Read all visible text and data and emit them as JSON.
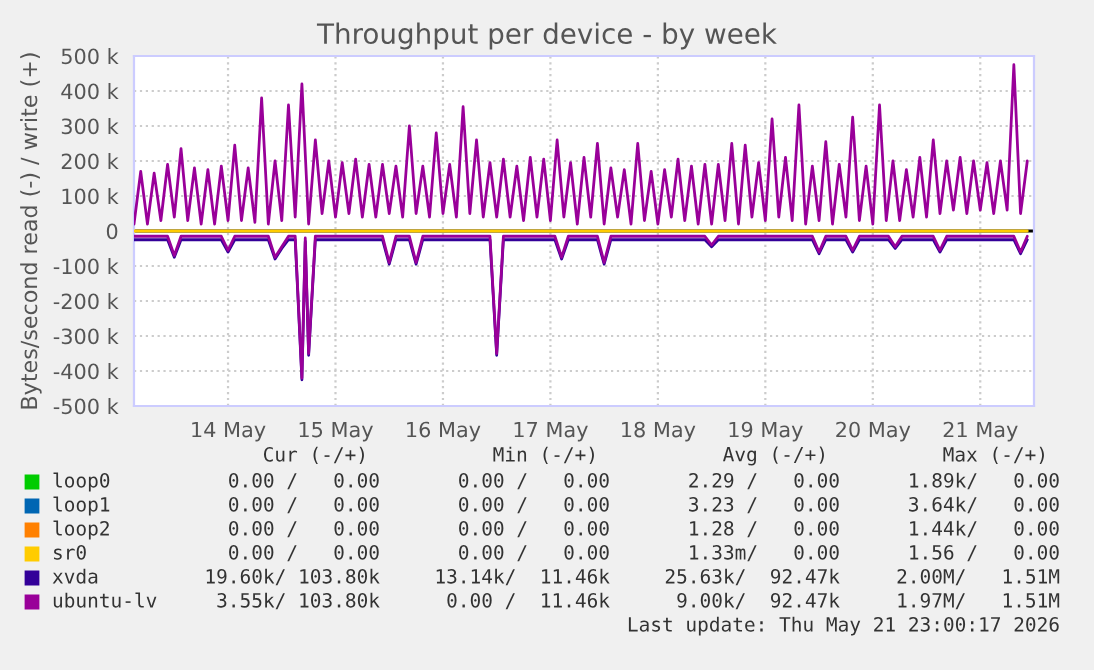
{
  "chart_data": {
    "type": "line",
    "title": "Throughput per device - by week",
    "ylabel": "Bytes/second read (-) / write (+)",
    "xlim": [
      "2026-05-13T15:00",
      "2026-05-22T00:00"
    ],
    "xticks": [
      {
        "value": "2026-05-14T12:00",
        "label": "14 May"
      },
      {
        "value": "2026-05-15T12:00",
        "label": "15 May"
      },
      {
        "value": "2026-05-16T12:00",
        "label": "16 May"
      },
      {
        "value": "2026-05-17T12:00",
        "label": "17 May"
      },
      {
        "value": "2026-05-18T12:00",
        "label": "18 May"
      },
      {
        "value": "2026-05-19T12:00",
        "label": "19 May"
      },
      {
        "value": "2026-05-20T12:00",
        "label": "20 May"
      },
      {
        "value": "2026-05-21T12:00",
        "label": "21 May"
      }
    ],
    "ylim": [
      -500000,
      500000
    ],
    "yticks": [
      {
        "value": -500000,
        "label": "-500 k"
      },
      {
        "value": -400000,
        "label": "-400 k"
      },
      {
        "value": -300000,
        "label": "-300 k"
      },
      {
        "value": -200000,
        "label": "-200 k"
      },
      {
        "value": -100000,
        "label": "-100 k"
      },
      0,
      {
        "value": 100000,
        "label": "100 k"
      },
      {
        "value": 200000,
        "label": "200 k"
      },
      {
        "value": 300000,
        "label": "300 k"
      },
      {
        "value": 400000,
        "label": "400 k"
      },
      {
        "value": 500000,
        "label": "500 k"
      }
    ],
    "grid": true,
    "legend": "bottom",
    "ref_lines": [
      {
        "axis": "y",
        "value": 0,
        "color": "#000000"
      }
    ],
    "series": [
      {
        "name": "loop0",
        "color": "#00cc00"
      },
      {
        "name": "loop1",
        "color": "#0066b3"
      },
      {
        "name": "loop2",
        "color": "#ff8000"
      },
      {
        "name": "sr0",
        "color": "#ffcc00",
        "x": [
          "2026-05-13T15:00",
          "2026-05-21T22:30"
        ],
        "values": [
          0,
          0
        ]
      },
      {
        "name": "xvda",
        "color": "#330099",
        "x": [
          "2026-05-13T15:00",
          "2026-05-13T22:30",
          "2026-05-14T00:00",
          "2026-05-14T01:30",
          "2026-05-14T10:30",
          "2026-05-14T12:00",
          "2026-05-14T13:30",
          "2026-05-14T21:00",
          "2026-05-14T22:30",
          "2026-05-15T00:00",
          "2026-05-15T01:30",
          "2026-05-15T03:00",
          "2026-05-15T04:30",
          "2026-05-15T05:15",
          "2026-05-15T06:00",
          "2026-05-15T07:30",
          "2026-05-15T22:30",
          "2026-05-16T00:00",
          "2026-05-16T01:30",
          "2026-05-16T04:30",
          "2026-05-16T06:00",
          "2026-05-16T07:30",
          "2026-05-16T22:30",
          "2026-05-17T00:00",
          "2026-05-17T01:30",
          "2026-05-17T13:00",
          "2026-05-17T14:30",
          "2026-05-17T16:00",
          "2026-05-17T22:30",
          "2026-05-18T00:00",
          "2026-05-18T01:30",
          "2026-05-18T22:30",
          "2026-05-19T00:00",
          "2026-05-19T01:30",
          "2026-05-19T22:30",
          "2026-05-20T00:00",
          "2026-05-20T01:30",
          "2026-05-20T06:00",
          "2026-05-20T07:30",
          "2026-05-20T09:00",
          "2026-05-20T15:30",
          "2026-05-20T17:00",
          "2026-05-20T18:30",
          "2026-05-21T01:30",
          "2026-05-21T03:00",
          "2026-05-21T04:30",
          "2026-05-21T19:30",
          "2026-05-21T21:00",
          "2026-05-21T22:30"
        ],
        "values": [
          -25000,
          -25000,
          -75000,
          -25000,
          -25000,
          -60000,
          -25000,
          -25000,
          -80000,
          -50000,
          -25000,
          -25000,
          -425000,
          -30000,
          -355000,
          -25000,
          -25000,
          -95000,
          -25000,
          -25000,
          -95000,
          -25000,
          -25000,
          -355000,
          -25000,
          -25000,
          -80000,
          -25000,
          -25000,
          -95000,
          -25000,
          -25000,
          -45000,
          -25000,
          -25000,
          -65000,
          -25000,
          -25000,
          -60000,
          -25000,
          -25000,
          -50000,
          -25000,
          -25000,
          -60000,
          -25000,
          -25000,
          -65000,
          -25000
        ]
      },
      {
        "name": "ubuntu-lv",
        "color": "#990099",
        "x": [
          "2026-05-13T15:00",
          "2026-05-13T22:30",
          "2026-05-14T00:00",
          "2026-05-14T01:30",
          "2026-05-14T10:30",
          "2026-05-14T12:00",
          "2026-05-14T13:30",
          "2026-05-14T21:00",
          "2026-05-14T22:30",
          "2026-05-15T00:00",
          "2026-05-15T01:30",
          "2026-05-15T03:00",
          "2026-05-15T04:30",
          "2026-05-15T05:15",
          "2026-05-15T06:00",
          "2026-05-15T07:30",
          "2026-05-15T22:30",
          "2026-05-16T00:00",
          "2026-05-16T01:30",
          "2026-05-16T04:30",
          "2026-05-16T06:00",
          "2026-05-16T07:30",
          "2026-05-16T22:30",
          "2026-05-17T00:00",
          "2026-05-17T01:30",
          "2026-05-17T13:00",
          "2026-05-17T14:30",
          "2026-05-17T16:00",
          "2026-05-17T22:30",
          "2026-05-18T00:00",
          "2026-05-18T01:30",
          "2026-05-18T22:30",
          "2026-05-19T00:00",
          "2026-05-19T01:30",
          "2026-05-19T22:30",
          "2026-05-20T00:00",
          "2026-05-20T01:30",
          "2026-05-20T06:00",
          "2026-05-20T07:30",
          "2026-05-20T09:00",
          "2026-05-20T15:30",
          "2026-05-20T17:00",
          "2026-05-20T18:30",
          "2026-05-21T01:30",
          "2026-05-21T03:00",
          "2026-05-21T04:30",
          "2026-05-21T19:30",
          "2026-05-21T21:00",
          "2026-05-21T22:30"
        ],
        "values": [
          -15000,
          -15000,
          -70000,
          -15000,
          -15000,
          -55000,
          -15000,
          -15000,
          -75000,
          -45000,
          -15000,
          -15000,
          -420000,
          -20000,
          -350000,
          -15000,
          -15000,
          -90000,
          -15000,
          -15000,
          -90000,
          -15000,
          -15000,
          -350000,
          -15000,
          -15000,
          -75000,
          -15000,
          -15000,
          -90000,
          -15000,
          -15000,
          -40000,
          -15000,
          -15000,
          -60000,
          -15000,
          -15000,
          -55000,
          -15000,
          -15000,
          -45000,
          -15000,
          -15000,
          -55000,
          -15000,
          -15000,
          -60000,
          -15000
        ]
      },
      {
        "color": "#990099",
        "x": [
          "2026-05-13T15:00",
          "2026-05-13T16:30",
          "2026-05-13T18:00",
          "2026-05-13T19:30",
          "2026-05-13T21:00",
          "2026-05-13T22:30",
          "2026-05-14T00:00",
          "2026-05-14T01:30",
          "2026-05-14T03:00",
          "2026-05-14T04:30",
          "2026-05-14T06:00",
          "2026-05-14T07:30",
          "2026-05-14T09:00",
          "2026-05-14T10:30",
          "2026-05-14T12:00",
          "2026-05-14T13:30",
          "2026-05-14T15:00",
          "2026-05-14T16:30",
          "2026-05-14T18:00",
          "2026-05-14T19:30",
          "2026-05-14T21:00",
          "2026-05-14T22:30",
          "2026-05-15T00:00",
          "2026-05-15T01:30",
          "2026-05-15T03:00",
          "2026-05-15T04:30",
          "2026-05-15T06:00",
          "2026-05-15T07:30",
          "2026-05-15T09:00",
          "2026-05-15T10:30",
          "2026-05-15T12:00",
          "2026-05-15T13:30",
          "2026-05-15T15:00",
          "2026-05-15T16:30",
          "2026-05-15T18:00",
          "2026-05-15T19:30",
          "2026-05-15T21:00",
          "2026-05-15T22:30",
          "2026-05-16T00:00",
          "2026-05-16T01:30",
          "2026-05-16T03:00",
          "2026-05-16T04:30",
          "2026-05-16T06:00",
          "2026-05-16T07:30",
          "2026-05-16T09:00",
          "2026-05-16T10:30",
          "2026-05-16T12:00",
          "2026-05-16T13:30",
          "2026-05-16T15:00",
          "2026-05-16T16:30",
          "2026-05-16T18:00",
          "2026-05-16T19:30",
          "2026-05-16T21:00",
          "2026-05-16T22:30",
          "2026-05-17T00:00",
          "2026-05-17T01:30",
          "2026-05-17T03:00",
          "2026-05-17T04:30",
          "2026-05-17T06:00",
          "2026-05-17T07:30",
          "2026-05-17T09:00",
          "2026-05-17T10:30",
          "2026-05-17T12:00",
          "2026-05-17T13:30",
          "2026-05-17T15:00",
          "2026-05-17T16:30",
          "2026-05-17T18:00",
          "2026-05-17T19:30",
          "2026-05-17T21:00",
          "2026-05-17T22:30",
          "2026-05-18T00:00",
          "2026-05-18T01:30",
          "2026-05-18T03:00",
          "2026-05-18T04:30",
          "2026-05-18T06:00",
          "2026-05-18T07:30",
          "2026-05-18T09:00",
          "2026-05-18T10:30",
          "2026-05-18T12:00",
          "2026-05-18T13:30",
          "2026-05-18T15:00",
          "2026-05-18T16:30",
          "2026-05-18T18:00",
          "2026-05-18T19:30",
          "2026-05-18T21:00",
          "2026-05-18T22:30",
          "2026-05-19T00:00",
          "2026-05-19T01:30",
          "2026-05-19T03:00",
          "2026-05-19T04:30",
          "2026-05-19T06:00",
          "2026-05-19T07:30",
          "2026-05-19T09:00",
          "2026-05-19T10:30",
          "2026-05-19T12:00",
          "2026-05-19T13:30",
          "2026-05-19T15:00",
          "2026-05-19T16:30",
          "2026-05-19T18:00",
          "2026-05-19T19:30",
          "2026-05-19T21:00",
          "2026-05-19T22:30",
          "2026-05-20T00:00",
          "2026-05-20T01:30",
          "2026-05-20T03:00",
          "2026-05-20T04:30",
          "2026-05-20T06:00",
          "2026-05-20T07:30",
          "2026-05-20T09:00",
          "2026-05-20T10:30",
          "2026-05-20T12:00",
          "2026-05-20T13:30",
          "2026-05-20T15:00",
          "2026-05-20T16:30",
          "2026-05-20T18:00",
          "2026-05-20T19:30",
          "2026-05-20T21:00",
          "2026-05-20T22:30",
          "2026-05-21T00:00",
          "2026-05-21T01:30",
          "2026-05-21T03:00",
          "2026-05-21T04:30",
          "2026-05-21T06:00",
          "2026-05-21T07:30",
          "2026-05-21T09:00",
          "2026-05-21T10:30",
          "2026-05-21T12:00",
          "2026-05-21T13:30",
          "2026-05-21T15:00",
          "2026-05-21T16:30",
          "2026-05-21T18:00",
          "2026-05-21T19:30",
          "2026-05-21T21:00",
          "2026-05-21T22:30"
        ],
        "values": [
          20000,
          170000,
          20000,
          165000,
          30000,
          190000,
          40000,
          235000,
          30000,
          180000,
          20000,
          175000,
          20000,
          185000,
          30000,
          245000,
          30000,
          180000,
          25000,
          380000,
          20000,
          200000,
          30000,
          360000,
          40000,
          420000,
          20000,
          260000,
          50000,
          200000,
          40000,
          195000,
          50000,
          205000,
          40000,
          190000,
          40000,
          190000,
          50000,
          185000,
          40000,
          300000,
          50000,
          185000,
          40000,
          280000,
          50000,
          190000,
          40000,
          355000,
          50000,
          260000,
          40000,
          195000,
          40000,
          205000,
          40000,
          185000,
          30000,
          210000,
          40000,
          205000,
          30000,
          260000,
          40000,
          195000,
          20000,
          210000,
          40000,
          250000,
          20000,
          180000,
          40000,
          175000,
          20000,
          250000,
          30000,
          170000,
          20000,
          175000,
          40000,
          205000,
          30000,
          185000,
          20000,
          190000,
          20000,
          190000,
          30000,
          250000,
          20000,
          245000,
          40000,
          195000,
          30000,
          320000,
          40000,
          210000,
          30000,
          360000,
          20000,
          185000,
          30000,
          255000,
          20000,
          190000,
          40000,
          325000,
          30000,
          185000,
          20000,
          360000,
          30000,
          200000,
          30000,
          175000,
          40000,
          210000,
          40000,
          260000,
          50000,
          200000,
          60000,
          210000,
          50000,
          200000,
          60000,
          195000,
          50000,
          200000,
          60000,
          475000,
          50000,
          200000
        ]
      }
    ],
    "annotations": [
      "Cur (-/+)",
      "Min (-/+)",
      "Avg (-/+)",
      "Max (-/+)",
      "0.00 /   0.00",
      "0.00 /   0.00",
      "2.29 /   0.00",
      "1.89k/   0.00",
      "0.00 /   0.00",
      "0.00 /   0.00",
      "3.23 /   0.00",
      "3.64k/   0.00",
      "0.00 /   0.00",
      "0.00 /   0.00",
      "1.28 /   0.00",
      "1.44k/   0.00",
      "0.00 /   0.00",
      "0.00 /   0.00",
      "1.33m/   0.00",
      "1.56 /   0.00",
      "19.60k/ 103.80k",
      "13.14k/  11.46k",
      "25.63k/  92.47k",
      "2.00M/   1.51M",
      "3.55k/ 103.80k",
      "0.00 /  11.46k",
      "9.00k/  92.47k",
      "1.97M/   1.51M",
      "Last update: Thu May 21 23:00:17 2026"
    ]
  }
}
